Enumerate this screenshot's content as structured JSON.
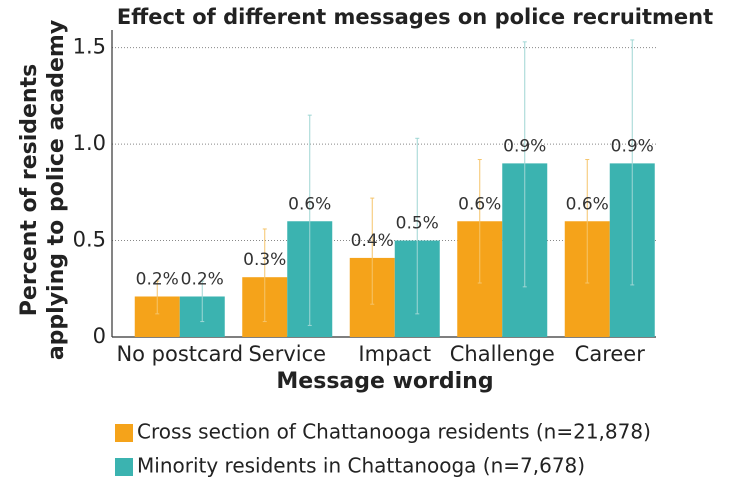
{
  "chart_data": {
    "type": "bar",
    "title": "Effect of different messages on police recruitment",
    "x_label": "Message wording",
    "y_label": [
      "Percent of residents",
      "applying to police academy"
    ],
    "categories": [
      "No postcard",
      "Service",
      "Impact",
      "Challenge",
      "Career"
    ],
    "series": [
      {
        "name": "Cross section of Chattanooga residents (n=21,878)",
        "color": "#f5a31a",
        "values": [
          0.21,
          0.31,
          0.41,
          0.6,
          0.6
        ],
        "value_labels": [
          "0.2%",
          "0.3%",
          "0.4%",
          "0.6%",
          "0.6%"
        ],
        "ci_low": [
          0.12,
          0.08,
          0.17,
          0.28,
          0.28
        ],
        "ci_high": [
          0.29,
          0.56,
          0.72,
          0.92,
          0.92
        ]
      },
      {
        "name": "Minority residents in Chattanooga (n=7,678)",
        "color": "#3bb3b0",
        "values": [
          0.21,
          0.6,
          0.5,
          0.9,
          0.9
        ],
        "value_labels": [
          "0.2%",
          "0.6%",
          "0.5%",
          "0.9%",
          "0.9%"
        ],
        "ci_low": [
          0.08,
          0.06,
          0.12,
          0.26,
          0.27
        ],
        "ci_high": [
          0.29,
          1.15,
          1.03,
          1.53,
          1.54
        ]
      }
    ],
    "ylim": [
      0,
      1.55
    ],
    "yticks": [
      0,
      0.5,
      {
        "value": 1,
        "label": "1.0"
      },
      1.5
    ],
    "grid": true
  }
}
